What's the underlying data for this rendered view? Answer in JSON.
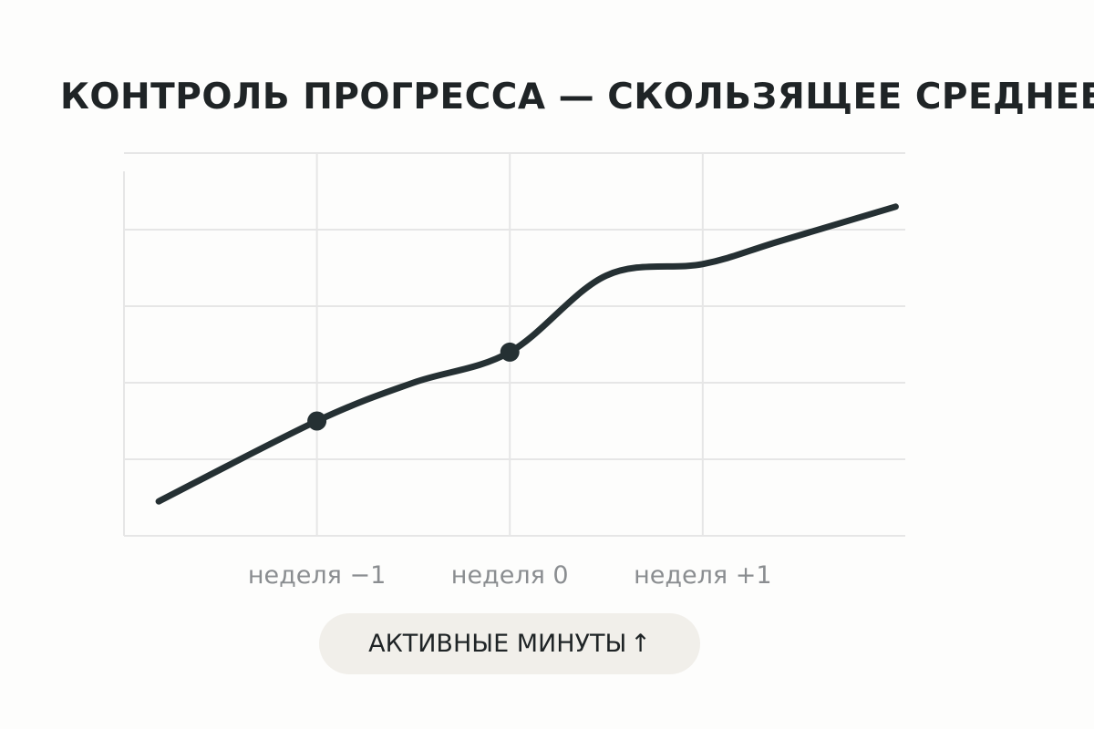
{
  "title": "КОНТРОЛЬ ПРОГРЕССА — СКОЛЬЗЯЩЕЕ СРЕДНЕЕ",
  "legend_pill": {
    "label": "АКТИВНЫЕ МИНУТЫ",
    "arrow": "↑"
  },
  "colors": {
    "line": "#253033",
    "grid": "#e6e6e6",
    "tick_text": "#8a8d90",
    "pill_bg": "#f1efea"
  },
  "chart_data": {
    "type": "line",
    "title": "КОНТРОЛЬ ПРОГРЕССА — СКОЛЬЗЯЩЕЕ СРЕДНЕЕ",
    "xlabel": "",
    "ylabel": "",
    "x_ticks": [
      {
        "x": -1,
        "label": "неделя −1"
      },
      {
        "x": 0,
        "label": "неделя 0"
      },
      {
        "x": 1,
        "label": "неделя +1"
      }
    ],
    "xlim": [
      -2.0,
      2.05
    ],
    "ylim": [
      0,
      5
    ],
    "grid": true,
    "y_ticks_shown": false,
    "series": [
      {
        "values": [
          {
            "x": -1.82,
            "y": 0.45
          },
          {
            "x": -1.0,
            "y": 1.5
          },
          {
            "x": -0.5,
            "y": 2.0
          },
          {
            "x": 0.0,
            "y": 2.4
          },
          {
            "x": 0.5,
            "y": 3.4
          },
          {
            "x": 1.0,
            "y": 3.55
          },
          {
            "x": 1.4,
            "y": 3.85
          },
          {
            "x": 2.0,
            "y": 4.3
          }
        ],
        "markers": [
          {
            "x": -1.0,
            "y": 1.5
          },
          {
            "x": 0.0,
            "y": 2.4
          }
        ]
      }
    ]
  }
}
